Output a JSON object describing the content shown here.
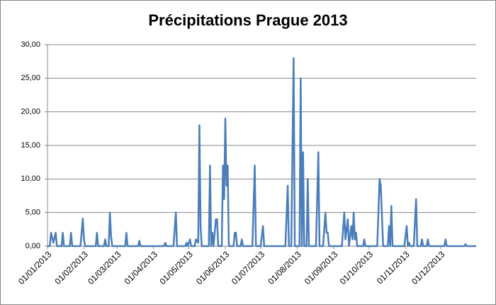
{
  "chart_data": {
    "type": "line",
    "title": "Précipitations Prague 2013",
    "x": [
      "01/01/2013",
      "03/01/2013",
      "04/01/2013",
      "06/01/2013",
      "08/01/2013",
      "09/01/2013",
      "13/01/2013",
      "14/01/2013",
      "15/01/2013",
      "20/01/2013",
      "21/01/2013",
      "22/01/2013",
      "29/01/2013",
      "31/01/2013",
      "01/02/2013",
      "02/02/2013",
      "11/02/2013",
      "12/02/2013",
      "13/02/2013",
      "18/02/2013",
      "19/02/2013",
      "20/02/2013",
      "22/02/2013",
      "23/02/2013",
      "24/02/2013",
      "25/02/2013",
      "08/03/2013",
      "09/03/2013",
      "10/03/2013",
      "19/03/2013",
      "20/03/2013",
      "21/03/2013",
      "10/04/2013",
      "11/04/2013",
      "12/04/2013",
      "18/04/2013",
      "20/04/2013",
      "21/04/2013",
      "28/04/2013",
      "29/04/2013",
      "30/04/2013",
      "02/05/2013",
      "03/05/2013",
      "06/05/2013",
      "07/05/2013",
      "09/05/2013",
      "10/05/2013",
      "11/05/2013",
      "12/05/2013",
      "18/05/2013",
      "19/05/2013",
      "20/05/2013",
      "21/05/2013",
      "22/05/2013",
      "24/05/2013",
      "25/05/2013",
      "26/05/2013",
      "29/05/2013",
      "30/05/2013",
      "31/05/2013",
      "01/06/2013",
      "02/06/2013",
      "03/06/2013",
      "04/06/2013",
      "08/06/2013",
      "09/06/2013",
      "10/06/2013",
      "11/06/2013",
      "14/06/2013",
      "15/06/2013",
      "16/06/2013",
      "24/06/2013",
      "26/06/2013",
      "27/06/2013",
      "01/07/2013",
      "03/07/2013",
      "04/07/2013",
      "22/07/2013",
      "24/07/2013",
      "25/07/2013",
      "27/07/2013",
      "29/07/2013",
      "30/07/2013",
      "03/08/2013",
      "04/08/2013",
      "05/08/2013",
      "06/08/2013",
      "07/08/2013",
      "09/08/2013",
      "10/08/2013",
      "11/08/2013",
      "17/08/2013",
      "19/08/2013",
      "20/08/2013",
      "23/08/2013",
      "25/08/2013",
      "26/08/2013",
      "27/08/2013",
      "28/08/2013",
      "08/09/2013",
      "10/09/2013",
      "11/09/2013",
      "13/09/2013",
      "14/09/2013",
      "16/09/2013",
      "17/09/2013",
      "18/09/2013",
      "19/09/2013",
      "20/09/2013",
      "21/09/2013",
      "26/09/2013",
      "27/09/2013",
      "28/09/2013",
      "08/10/2013",
      "10/10/2013",
      "11/10/2013",
      "13/10/2013",
      "17/10/2013",
      "18/10/2013",
      "19/10/2013",
      "20/10/2013",
      "21/10/2013",
      "31/10/2013",
      "02/11/2013",
      "03/11/2013",
      "04/11/2013",
      "05/11/2013",
      "08/11/2013",
      "10/11/2013",
      "11/11/2013",
      "14/11/2013",
      "15/11/2013",
      "16/11/2013",
      "19/11/2013",
      "20/11/2013",
      "21/11/2013",
      "04/12/2013",
      "05/12/2013",
      "06/12/2013",
      "21/12/2013",
      "22/12/2013",
      "23/12/2013",
      "31/12/2013"
    ],
    "series": [
      {
        "name": "Précipitations",
        "color": "#4a7ebb",
        "values": [
          0,
          0,
          2,
          0.5,
          2,
          0,
          0,
          2,
          0,
          0,
          2,
          0,
          0,
          4.1,
          1,
          0,
          0,
          2,
          0,
          0,
          1,
          0,
          0,
          5,
          1.5,
          0,
          0,
          2,
          0,
          0,
          0.8,
          0,
          0,
          0.5,
          0,
          0,
          5,
          0,
          0,
          0.5,
          0,
          1,
          0,
          0,
          1,
          0.5,
          18,
          3,
          0,
          0,
          12,
          0,
          2,
          0,
          4,
          4,
          0,
          0,
          12,
          7,
          19,
          9,
          12,
          0,
          0,
          2,
          2,
          0,
          0,
          1,
          0,
          0,
          12,
          0,
          0,
          3,
          0,
          0,
          9,
          0,
          0,
          28,
          0,
          0,
          25,
          0,
          14,
          0,
          0,
          10,
          0,
          0,
          14,
          0,
          0,
          5,
          2,
          2,
          0,
          0,
          5,
          1,
          4,
          0,
          3,
          1,
          5,
          1,
          2,
          0,
          0,
          1,
          0,
          0,
          10,
          9,
          0,
          0,
          3,
          0,
          6,
          0,
          0,
          3,
          0,
          0.5,
          0,
          0,
          7,
          0,
          0,
          1,
          0,
          0,
          1,
          0,
          0,
          1,
          0,
          0,
          0.3,
          0,
          0
        ]
      }
    ],
    "xlim": [
      "01/01/2013",
      "31/12/2013"
    ],
    "xticks": [
      "01/01/2013",
      "01/02/2013",
      "01/03/2013",
      "01/04/2013",
      "01/05/2013",
      "01/06/2013",
      "01/07/2013",
      "01/08/2013",
      "01/09/2013",
      "01/10/2013",
      "01/11/2013",
      "01/12/2013"
    ],
    "ylim": [
      0,
      30
    ],
    "yticks": [
      {
        "value": 0,
        "label": "0,00"
      },
      {
        "value": 5,
        "label": "5,00"
      },
      {
        "value": 10,
        "label": "10,00"
      },
      {
        "value": 15,
        "label": "15,00"
      },
      {
        "value": 20,
        "label": "20,00"
      },
      {
        "value": 25,
        "label": "25,00"
      },
      {
        "value": 30,
        "label": "30,00"
      }
    ],
    "grid": true
  }
}
